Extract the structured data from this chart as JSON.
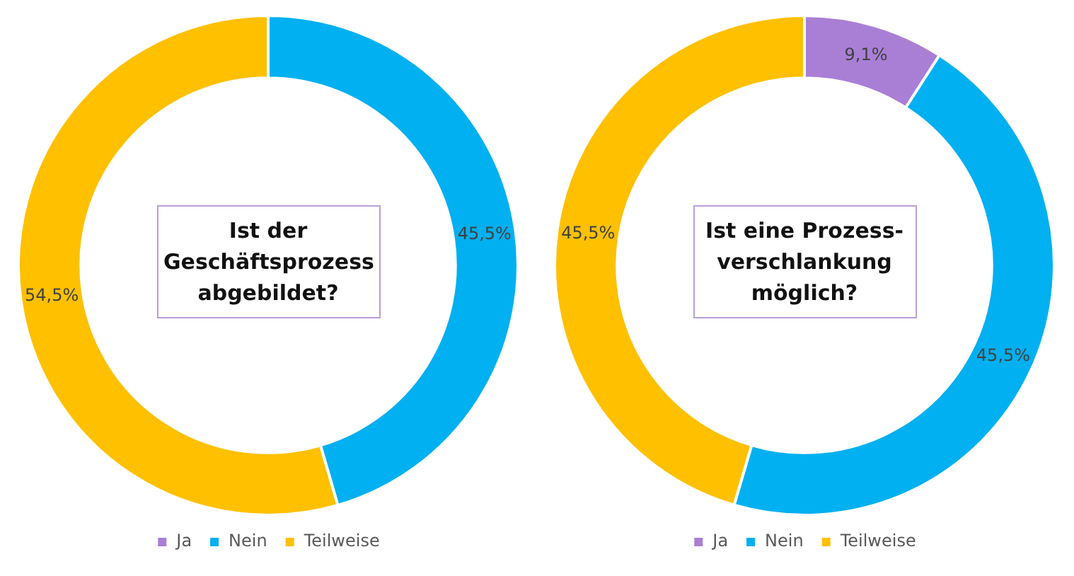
{
  "chart_data": [
    {
      "type": "donut",
      "title": "Ist der Geschäftsprozess abgebildet?",
      "categories": [
        "Ja",
        "Nein",
        "Teilweise"
      ],
      "values": [
        0,
        45.5,
        54.5
      ],
      "colors": [
        "#a97fd6",
        "#00b0f0",
        "#ffc000"
      ],
      "value_labels": [
        null,
        "45,5%",
        "54,5%"
      ],
      "legend": "bottom"
    },
    {
      "type": "donut",
      "title": "Ist eine Prozess-verschlankung möglich?",
      "categories": [
        "Ja",
        "Nein",
        "Teilweise"
      ],
      "values": [
        9.1,
        45.5,
        45.5
      ],
      "colors": [
        "#a97fd6",
        "#00b0f0",
        "#ffc000"
      ],
      "value_labels": [
        "9,1%",
        "45,5%",
        "45,5%"
      ],
      "legend": "bottom"
    }
  ]
}
